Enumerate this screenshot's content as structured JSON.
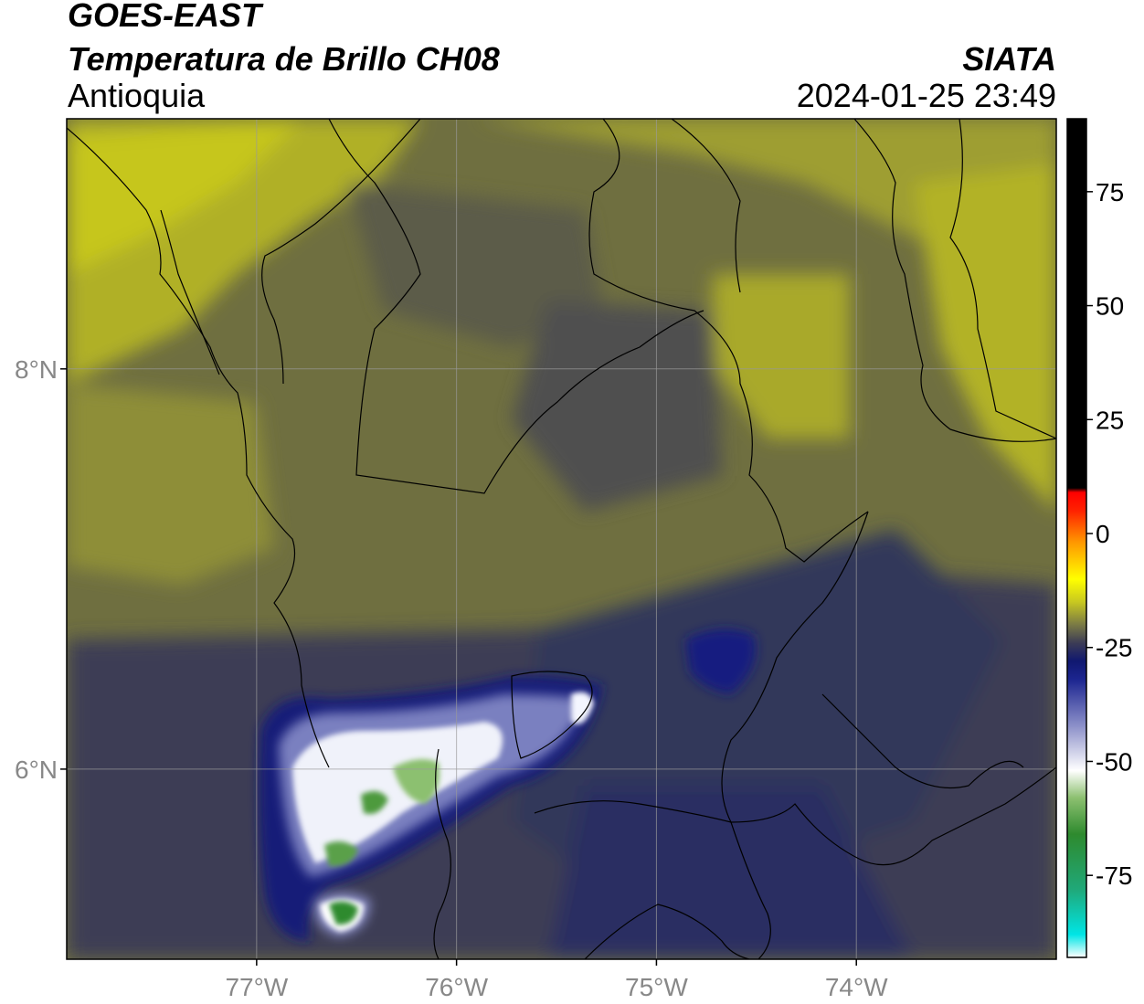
{
  "header": {
    "satellite": "GOES-EAST",
    "product": "Temperatura de Brillo CH08",
    "region": "Antioquia",
    "organization": "SIATA",
    "timestamp": "2024-01-25 23:49"
  },
  "map": {
    "lon_range": [
      -77.95,
      -73.0
    ],
    "lat_range": [
      5.05,
      9.25
    ],
    "lat_ticks": [
      {
        "value": 8,
        "label": "8°N"
      },
      {
        "value": 6,
        "label": "6°N"
      }
    ],
    "lon_ticks": [
      {
        "value": -77,
        "label": "77°W"
      },
      {
        "value": -76,
        "label": "76°W"
      },
      {
        "value": -75,
        "label": "75°W"
      },
      {
        "value": -74,
        "label": "74°W"
      }
    ],
    "grid": true
  },
  "colorbar": {
    "range": [
      -93,
      91
    ],
    "ticks": [
      {
        "value": 75,
        "label": "75"
      },
      {
        "value": 50,
        "label": "50"
      },
      {
        "value": 25,
        "label": "25"
      },
      {
        "value": 0,
        "label": "0"
      },
      {
        "value": -25,
        "label": "-25"
      },
      {
        "value": -50,
        "label": "-50"
      },
      {
        "value": -75,
        "label": "-75"
      }
    ],
    "stops": [
      {
        "value": -93,
        "color": "#ffffff"
      },
      {
        "value": -88,
        "color": "#00e5e5"
      },
      {
        "value": -78,
        "color": "#20a878"
      },
      {
        "value": -66,
        "color": "#2e8a2e"
      },
      {
        "value": -58,
        "color": "#8cc070"
      },
      {
        "value": -52,
        "color": "#ffffff"
      },
      {
        "value": -42,
        "color": "#8a8ec8"
      },
      {
        "value": -32,
        "color": "#1c2590"
      },
      {
        "value": -28,
        "color": "#101870"
      },
      {
        "value": -24,
        "color": "#3c3c55"
      },
      {
        "value": -20,
        "color": "#7a7a45"
      },
      {
        "value": -15,
        "color": "#c8c820"
      },
      {
        "value": -10,
        "color": "#ffff00"
      },
      {
        "value": -2,
        "color": "#ff9900"
      },
      {
        "value": 5,
        "color": "#ff2200"
      },
      {
        "value": 9,
        "color": "#ff0000"
      },
      {
        "value": 10,
        "color": "#000000"
      },
      {
        "value": 91,
        "color": "#000000"
      }
    ]
  }
}
